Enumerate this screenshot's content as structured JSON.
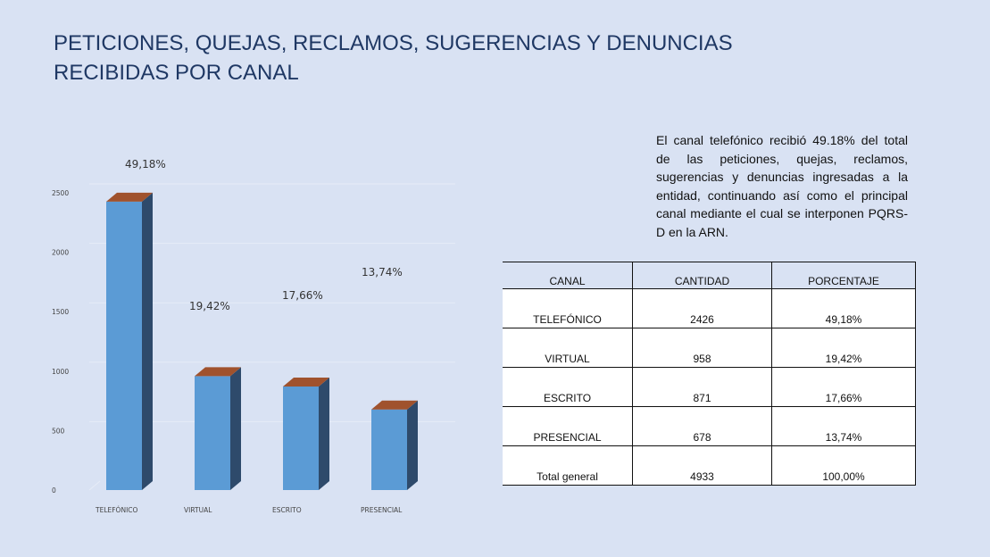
{
  "title": {
    "line1": "PETICIONES, QUEJAS, RECLAMOS, SUGERENCIAS Y DENUNCIAS",
    "line2": "RECIBIDAS POR CANAL"
  },
  "description": "El canal telefónico recibió 49.18% del total de las peticiones, quejas, reclamos, sugerencias y denuncias ingresadas a la entidad, continuando así como el principal canal mediante el cual se interponen PQRS-D en la ARN.",
  "table": {
    "headers": [
      "CANAL",
      "CANTIDAD",
      "PORCENTAJE"
    ],
    "rows": [
      [
        "TELEFÓNICO",
        "2426",
        "49,18%"
      ],
      [
        "VIRTUAL",
        "958",
        "19,42%"
      ],
      [
        "ESCRITO",
        "871",
        "17,66%"
      ],
      [
        "PRESENCIAL",
        "678",
        "13,74%"
      ],
      [
        "Total general",
        "4933",
        "100,00%"
      ]
    ]
  },
  "colors": {
    "bar_front": "#5b9bd5",
    "bar_side": "#2e4a6b",
    "bar_top": "#a0522d",
    "title": "#1f3864"
  },
  "chart_data": {
    "type": "bar",
    "categories": [
      "TELEFÓNICO",
      "VIRTUAL",
      "ESCRITO",
      "PRESENCIAL"
    ],
    "values": [
      2426,
      958,
      871,
      678
    ],
    "data_labels": [
      "49,18%",
      "19,42%",
      "17,66%",
      "13,74%"
    ],
    "y_ticks": [
      0,
      500,
      1000,
      1500,
      2000,
      2500
    ],
    "ylim": [
      0,
      2500
    ],
    "title": "",
    "xlabel": "",
    "ylabel": "",
    "grid": true,
    "style": "3d-columns"
  }
}
